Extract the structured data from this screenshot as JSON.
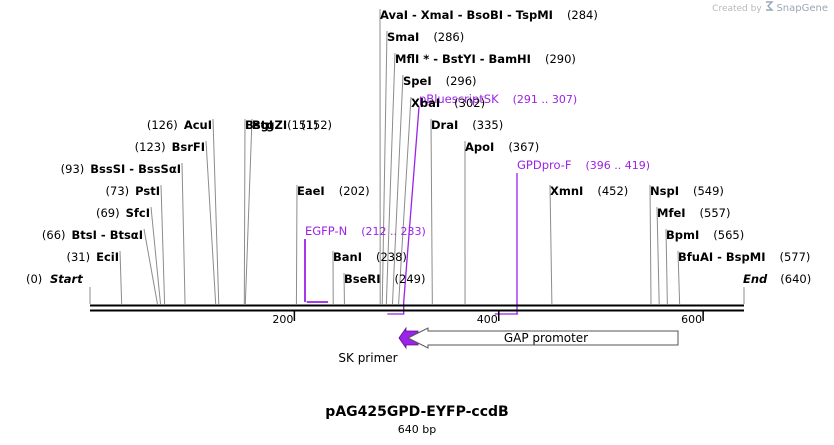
{
  "credit": {
    "prefix": "Created by",
    "brand": "SnapGene"
  },
  "title": "pAG425GPD-EYFP-ccdB",
  "length_label": "640 bp",
  "ruler_ticks": [
    {
      "label": "200",
      "bp": 200
    },
    {
      "label": "400",
      "bp": 400
    },
    {
      "label": "600",
      "bp": 600
    }
  ],
  "sites_left": [
    {
      "name": "EciI",
      "pos": 31,
      "pos_label": "(31)"
    },
    {
      "name": "BtsI - BtsαI",
      "pos": 66,
      "pos_label": "(66)"
    },
    {
      "name": "SfcI",
      "pos": 69,
      "pos_label": "(69)"
    },
    {
      "name": "PstI",
      "pos": 73,
      "pos_label": "(73)"
    },
    {
      "name": "BssSI - BssSαI",
      "pos": 93,
      "pos_label": "(93)"
    },
    {
      "name": "BsrFI",
      "pos": 123,
      "pos_label": "(123)"
    },
    {
      "name": "AcuI",
      "pos": 126,
      "pos_label": "(126)"
    }
  ],
  "sites_right": [
    {
      "name": "BsgI",
      "pos": 151,
      "pos_label": "(151)"
    },
    {
      "name": "BtgZI",
      "pos": 152,
      "pos_label": "(152)"
    },
    {
      "name": "EaeI",
      "pos": 202,
      "pos_label": "(202)"
    },
    {
      "name": "BanI",
      "pos": 238,
      "pos_label": "(238)"
    },
    {
      "name": "BseRI",
      "pos": 249,
      "pos_label": "(249)"
    },
    {
      "name": "AvaI - XmaI - BsoBI - TspMI",
      "pos": 284,
      "pos_label": "(284)"
    },
    {
      "name": "SmaI",
      "pos": 286,
      "pos_label": "(286)"
    },
    {
      "name": "MflI * - BstYI - BamHI",
      "pos": 290,
      "pos_label": "(290)"
    },
    {
      "name": "SpeI",
      "pos": 296,
      "pos_label": "(296)"
    },
    {
      "name": "XbaI",
      "pos": 302,
      "pos_label": "(302)"
    },
    {
      "name": "DraI",
      "pos": 335,
      "pos_label": "(335)"
    },
    {
      "name": "ApoI",
      "pos": 367,
      "pos_label": "(367)"
    },
    {
      "name": "XmnI",
      "pos": 452,
      "pos_label": "(452)"
    },
    {
      "name": "NspI",
      "pos": 549,
      "pos_label": "(549)"
    },
    {
      "name": "MfeI",
      "pos": 557,
      "pos_label": "(557)"
    },
    {
      "name": "BpmI",
      "pos": 565,
      "pos_label": "(565)"
    },
    {
      "name": "BfuAI - BspMI",
      "pos": 577,
      "pos_label": "(577)"
    }
  ],
  "ends": {
    "start": {
      "name": "Start",
      "pos_label": "(0)"
    },
    "end": {
      "name": "End",
      "pos_label": "(640)"
    }
  },
  "primers": [
    {
      "name": "pBluescriptSK",
      "range": "(291 .. 307)",
      "start": 291,
      "end": 307
    },
    {
      "name": "GPDpro-F",
      "range": "(396 .. 419)",
      "start": 396,
      "end": 419
    },
    {
      "name": "EGFP-N",
      "range": "(212 .. 233)",
      "start": 212,
      "end": 233
    }
  ],
  "features": [
    {
      "name": "SK primer",
      "start": 290,
      "end": 311,
      "color": "#9b22e8"
    },
    {
      "name": "GAP promoter",
      "start": 310,
      "end": 574,
      "color": "#ffffff"
    }
  ],
  "colors": {
    "primer": "#9b22e8",
    "backbone": "#000000",
    "tick_line": "#8c8c8c"
  }
}
